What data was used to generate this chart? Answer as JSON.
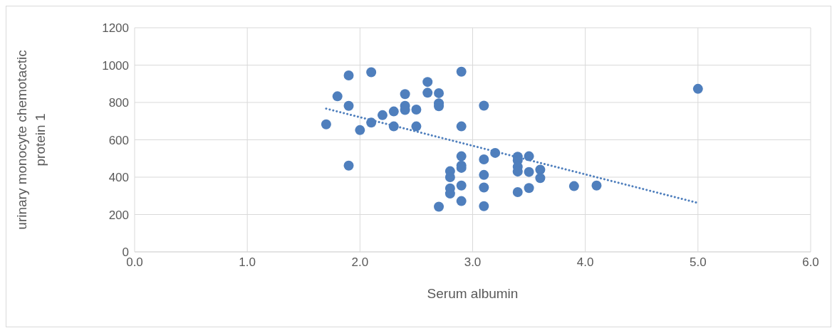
{
  "chart_data": {
    "type": "scatter",
    "xlabel": "Serum albumin",
    "ylabel": "urinary monocyte chemotactic protein 1",
    "xlim": [
      0,
      6
    ],
    "xticks": [
      {
        "value": 0,
        "label": "0.0"
      },
      {
        "value": 1,
        "label": "1.0"
      },
      {
        "value": 2,
        "label": "2.0"
      },
      {
        "value": 3,
        "label": "3.0"
      },
      {
        "value": 4,
        "label": "4.0"
      },
      {
        "value": 5,
        "label": "5.0"
      },
      {
        "value": 6,
        "label": "6.0"
      }
    ],
    "ylim": [
      0,
      1200
    ],
    "yticks": [
      0,
      200,
      400,
      600,
      800,
      1000,
      1200
    ],
    "grid": true,
    "marker": "circle",
    "series": [
      {
        "color": "#4f7fbd",
        "x": [
          1.7,
          1.8,
          1.9,
          1.9,
          1.9,
          2.0,
          2.1,
          2.1,
          2.2,
          2.3,
          2.3,
          2.4,
          2.4,
          2.4,
          2.5,
          2.5,
          2.6,
          2.6,
          2.7,
          2.7,
          2.7,
          2.7,
          2.8,
          2.8,
          2.8,
          2.8,
          2.9,
          2.9,
          2.9,
          2.9,
          2.9,
          2.9,
          2.9,
          3.1,
          3.1,
          3.1,
          3.1,
          3.1,
          3.2,
          3.4,
          3.4,
          3.4,
          3.4,
          3.4,
          3.5,
          3.5,
          3.5,
          3.6,
          3.6,
          3.9,
          4.1,
          5.0
        ],
        "values": [
          683,
          833,
          945,
          782,
          462,
          652,
          962,
          692,
          732,
          752,
          672,
          845,
          782,
          760,
          762,
          672,
          910,
          852,
          850,
          795,
          780,
          242,
          432,
          400,
          340,
          312,
          965,
          672,
          512,
          462,
          450,
          355,
          272,
          783,
          495,
          412,
          345,
          245,
          530,
          510,
          490,
          455,
          430,
          320,
          512,
          428,
          342,
          440,
          395,
          352,
          355,
          873
        ]
      },
      {
        "type": "line",
        "color": "#4f7fbd",
        "line_style": "dotted",
        "marker": "none",
        "x": [
          1.7,
          5.0
        ],
        "values": [
          767,
          262
        ]
      }
    ]
  }
}
